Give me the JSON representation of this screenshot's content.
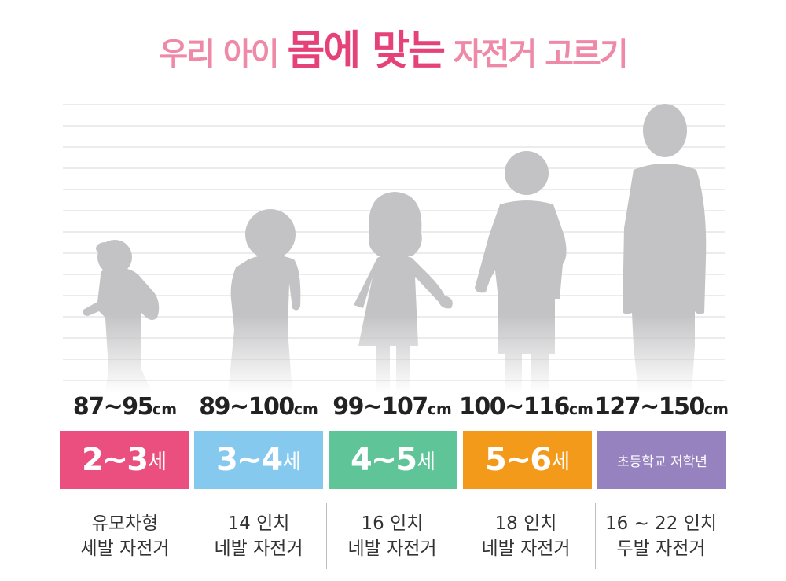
{
  "title": {
    "part1": "우리 아이",
    "emphasis": "몸에 맞는",
    "part2": "자전거 고르기"
  },
  "colors": {
    "title_light": "#ee8aa8",
    "title_strong": "#e6427a",
    "silhouette": "#c3c3c5",
    "grid": "#dadada"
  },
  "columns": [
    {
      "height": "87~95",
      "unit": "cm",
      "age": "2~3",
      "age_suffix": "세",
      "age_text": "",
      "color": "#ea4f7f",
      "desc_line1": "유모차형",
      "desc_line2": "세발 자전거"
    },
    {
      "height": "89~100",
      "unit": "cm",
      "age": "3~4",
      "age_suffix": "세",
      "age_text": "",
      "color": "#86c9ee",
      "desc_line1": "14 인치",
      "desc_line2": "네발 자전거"
    },
    {
      "height": "99~107",
      "unit": "cm",
      "age": "4~5",
      "age_suffix": "세",
      "age_text": "",
      "color": "#5fc498",
      "desc_line1": "16 인치",
      "desc_line2": "네발 자전거"
    },
    {
      "height": "100~116",
      "unit": "cm",
      "age": "5~6",
      "age_suffix": "세",
      "age_text": "",
      "color": "#f39a1b",
      "desc_line1": "18 인치",
      "desc_line2": "네발 자전거"
    },
    {
      "height": "127~150",
      "unit": "cm",
      "age": "",
      "age_suffix": "",
      "age_text": "초등학교 저학년",
      "color": "#9682bf",
      "desc_line1": "16 ~ 22 인치",
      "desc_line2": "두발 자전거"
    }
  ]
}
